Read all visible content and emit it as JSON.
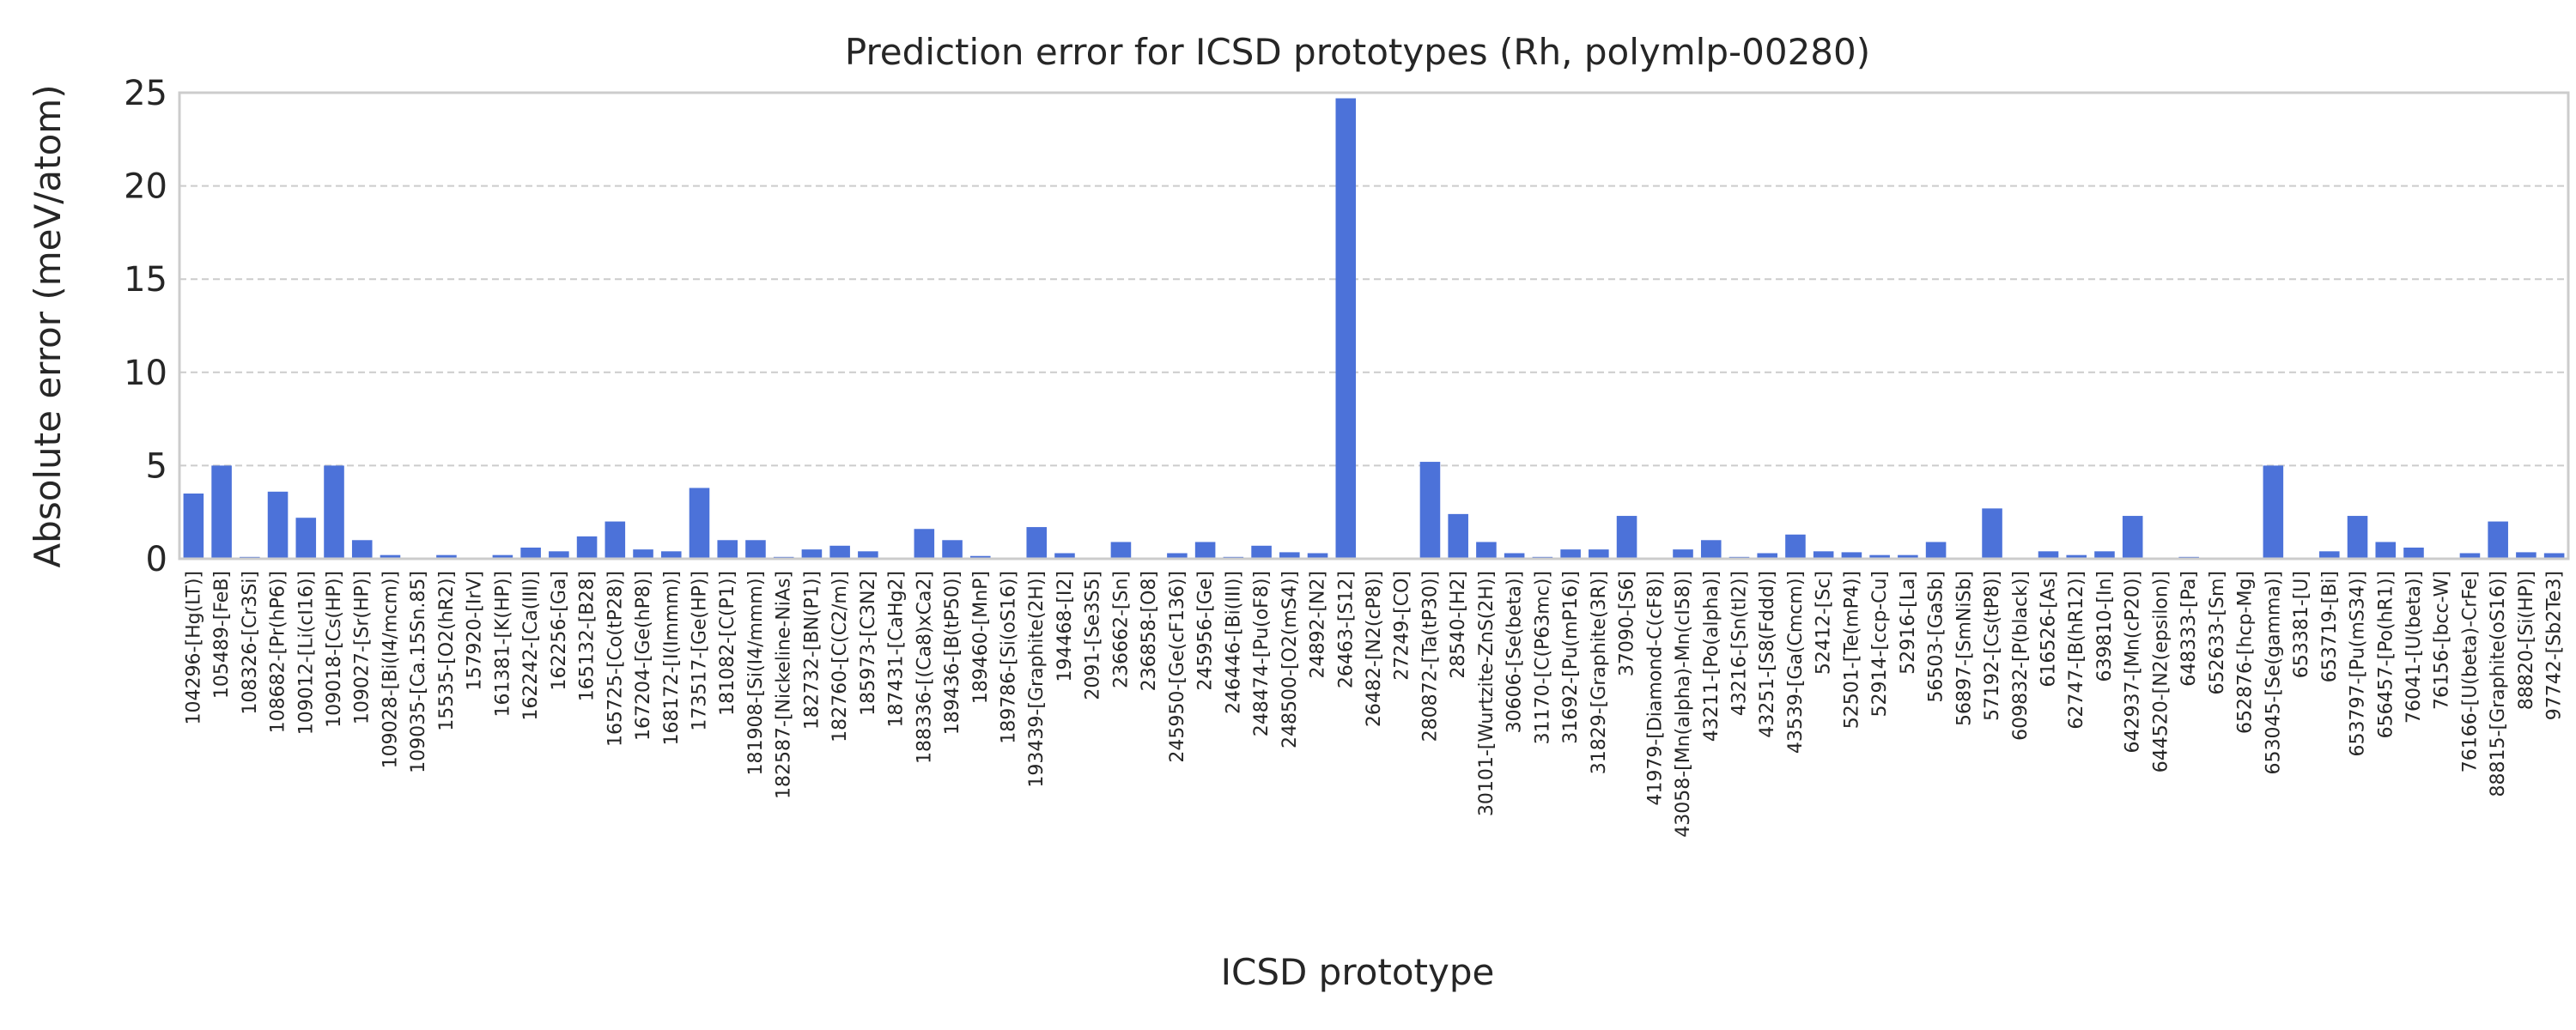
{
  "chart_data": {
    "type": "bar",
    "title": "Prediction error for ICSD prototypes (Rh, polymlp-00280)",
    "xlabel": "ICSD prototype",
    "ylabel": "Absolute error (meV/atom)",
    "ylim": [
      0,
      25
    ],
    "yticks": [
      0,
      5,
      10,
      15,
      20,
      25
    ],
    "grid": "y-dashed",
    "color": "#4c72d9",
    "categories": [
      "104296-[Hg(LT)]",
      "105489-[FeB]",
      "108326-[Cr3Si]",
      "108682-[Pr(hP6)]",
      "109012-[Li(cI16)]",
      "109018-[Cs(HP)]",
      "109027-[Sr(HP)]",
      "109028-[Bi(I4/mcm)]",
      "109035-[Ca.15Sn.85]",
      "15535-[O2(hR2)]",
      "157920-[IrV]",
      "161381-[K(HP)]",
      "162242-[Ca(III)]",
      "162256-[Ga]",
      "165132-[B28]",
      "165725-[Co(tP28)]",
      "167204-[Ge(hP8)]",
      "168172-[I(Immm)]",
      "173517-[Ge(HP)]",
      "181082-[C(P1)]",
      "181908-[Si(I4/mmm)]",
      "182587-[Nickeline-NiAs]",
      "182732-[BN(P1)]",
      "182760-[C(C2/m)]",
      "185973-[C3N2]",
      "187431-[CaHg2]",
      "188336-[(Ca8)xCa2]",
      "189436-[B(tP50)]",
      "189460-[MnP]",
      "189786-[Si(oS16)]",
      "193439-[Graphite(2H)]",
      "194468-[I2]",
      "2091-[Se3S5]",
      "236662-[Sn]",
      "236858-[O8]",
      "245950-[Ge(cF136)]",
      "245956-[Ge]",
      "246446-[Bi(III)]",
      "248474-[Pu(oF8)]",
      "248500-[O2(mS4)]",
      "24892-[N2]",
      "26463-[S12]",
      "26482-[N2(cP8)]",
      "27249-[CO]",
      "280872-[Ta(tP30)]",
      "28540-[H2]",
      "30101-[Wurtzite-ZnS(2H)]",
      "30606-[Se(beta)]",
      "31170-[C(P63mc)]",
      "31692-[Pu(mP16)]",
      "31829-[Graphite(3R)]",
      "37090-[S6]",
      "41979-[Diamond-C(cF8)]",
      "43058-[Mn(alpha)-Mn(cI58)]",
      "43211-[Po(alpha)]",
      "43216-[Sn(tI2)]",
      "43251-[S8(Fddd)]",
      "43539-[Ga(Cmcm)]",
      "52412-[Sc]",
      "52501-[Te(mP4)]",
      "52914-[ccp-Cu]",
      "52916-[La]",
      "56503-[GaSb]",
      "56897-[SmNiSb]",
      "57192-[Cs(tP8)]",
      "609832-[P(black)]",
      "616526-[As]",
      "62747-[B(hR12)]",
      "639810-[In]",
      "642937-[Mn(cP20)]",
      "644520-[N2(epsilon)]",
      "648333-[Pa]",
      "652633-[Sm]",
      "652876-[hcp-Mg]",
      "653045-[Se(gamma)]",
      "653381-[U]",
      "653719-[Bi]",
      "653797-[Pu(mS34)]",
      "656457-[Po(hR1)]",
      "76041-[U(beta)]",
      "76156-[bcc-W]",
      "76166-[U(beta)-CrFe]",
      "88815-[Graphite(oS16)]",
      "88820-[Si(HP)]",
      "97742-[Sb2Te3]"
    ],
    "values": [
      3.5,
      5.0,
      0.1,
      3.6,
      2.2,
      5.0,
      1.0,
      0.2,
      0.05,
      0.2,
      0.05,
      0.2,
      0.6,
      0.4,
      1.2,
      2.0,
      0.5,
      0.4,
      3.8,
      1.0,
      1.0,
      0.1,
      0.5,
      0.7,
      0.4,
      0.05,
      1.6,
      1.0,
      0.15,
      0.05,
      1.7,
      0.3,
      0.05,
      0.9,
      0.05,
      0.3,
      0.9,
      0.1,
      0.7,
      0.35,
      0.3,
      24.7,
      0.05,
      0.05,
      5.2,
      2.4,
      0.9,
      0.3,
      0.1,
      0.5,
      0.5,
      2.3,
      0.05,
      0.5,
      1.0,
      0.1,
      0.3,
      1.3,
      0.4,
      0.35,
      0.2,
      0.2,
      0.9,
      0.05,
      2.7,
      0.05,
      0.4,
      0.2,
      0.4,
      2.3,
      0.05,
      0.1,
      0.05,
      0.05,
      5.0,
      0.05,
      0.4,
      2.3,
      0.9,
      0.6,
      0.05,
      0.3,
      2.0,
      0.35,
      0.3
    ]
  }
}
